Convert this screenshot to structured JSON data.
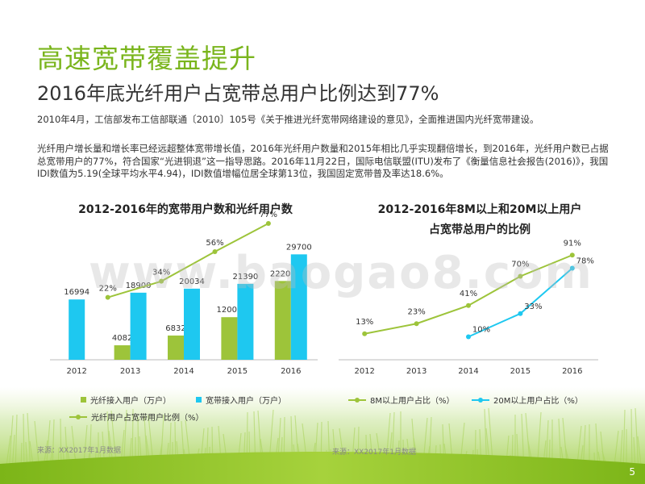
{
  "title": "高速宽带覆盖提升",
  "subtitle": "2016年底光纤用户占宽带总用户比例达到77%",
  "paragraphs": [
    "2010年4月，工信部发布工信部联通〔2010〕105号《关于推进光纤宽带网络建设的意见》，全面推进国内光纤宽带建设。",
    "光纤用户增长量和增长率已经远超整体宽带增长值，2016年光纤用户数量和2015年相比几乎实现翻倍增长，到2016年，光纤用户数已占据总宽带用户的77%，符合国家“光进铜退”这一指导思路。2016年11月22日，国际电信联盟(ITU)发布了《衡量信息社会报告(2016)》，我国IDI数值为5.19(全球平均水平4.94)，IDI数值增幅位居全球第13位，我国固定宽带普及率达18.6%。"
  ],
  "watermark": "www.baogao8.com",
  "page_number": "5",
  "colors": {
    "green": "#9dc43a",
    "blue": "#1ec8f0",
    "title_green": "#7ab51d"
  },
  "chart_data": [
    {
      "type": "bar",
      "title": "2012-2016年的宽带用户数和光纤用户数",
      "categories": [
        "2012",
        "2013",
        "2014",
        "2015",
        "2016"
      ],
      "series": [
        {
          "name": "光纤接入用户（万户）",
          "type": "bar",
          "color": "#9dc43a",
          "values": [
            null,
            4082,
            6832,
            12000,
            22200
          ],
          "labels": [
            "",
            "4082",
            "6832",
            "12000",
            "22200"
          ]
        },
        {
          "name": "宽带接入用户（万户）",
          "type": "bar",
          "color": "#1ec8f0",
          "values": [
            16994,
            18900,
            20034,
            21390,
            29700
          ],
          "labels": [
            "16994",
            "18900",
            "20034",
            "21390",
            "29700"
          ]
        },
        {
          "name": "光纤用户占宽带用户比例（%）",
          "type": "line",
          "color": "#9dc43a",
          "values": [
            null,
            22,
            34,
            56,
            77
          ],
          "labels": [
            "",
            "22%",
            "34%",
            "56%",
            "77%"
          ]
        }
      ],
      "legend_position": "bottom",
      "source": "来源：XX2017年1月数据"
    },
    {
      "type": "line",
      "title_lines": [
        "2012-2016年8M以上和20M以上用户",
        "占宽带总用户的比例"
      ],
      "categories": [
        "2012",
        "2013",
        "2014",
        "2015",
        "2016"
      ],
      "series": [
        {
          "name": "8M以上用户占比（%）",
          "color": "#9dc43a",
          "values": [
            13,
            23,
            41,
            70,
            91
          ],
          "labels": [
            "13%",
            "23%",
            "41%",
            "70%",
            "91%"
          ]
        },
        {
          "name": "20M以上用户占比（%）",
          "color": "#1ec8f0",
          "values": [
            null,
            null,
            10,
            33,
            78
          ],
          "labels": [
            "",
            "",
            "10%",
            "33%",
            "78%"
          ]
        }
      ],
      "legend_position": "bottom",
      "source": "来源：XX2017年1月数据"
    }
  ]
}
